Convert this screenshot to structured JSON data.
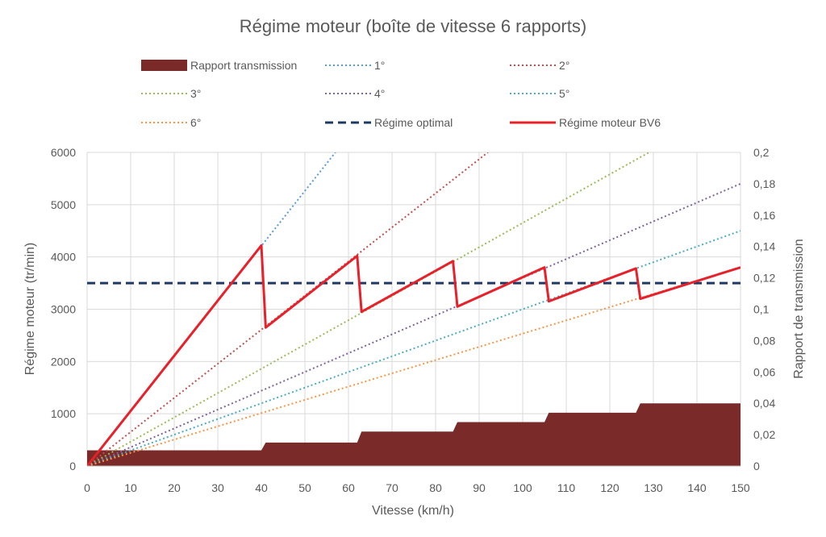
{
  "chart_data": {
    "type": "line",
    "title": "Régime moteur (boîte de vitesse 6 rapports)",
    "xlabel": "Vitesse (km/h)",
    "ylabel": "Régime moteur (tr/min)",
    "y2label": "Rapport de transmission",
    "xlim": [
      0,
      150
    ],
    "ylim": [
      0,
      6000
    ],
    "y2lim": [
      0,
      0.2
    ],
    "x_ticks": [
      "0",
      "10",
      "20",
      "30",
      "40",
      "50",
      "60",
      "70",
      "80",
      "90",
      "100",
      "110",
      "120",
      "130",
      "140",
      "150"
    ],
    "y_ticks": [
      "0",
      "1000",
      "2000",
      "3000",
      "4000",
      "5000",
      "6000"
    ],
    "y2_ticks": [
      "0",
      "0,02",
      "0,04",
      "0,06",
      "0,08",
      "0,1",
      "0,12",
      "0,14",
      "0,16",
      "0,18",
      "0,2"
    ],
    "grid": true,
    "legend_position": "top",
    "legend": [
      {
        "key": "ratio",
        "label": "Rapport transmission"
      },
      {
        "key": "g1",
        "label": "1°"
      },
      {
        "key": "g2",
        "label": "2°"
      },
      {
        "key": "g3",
        "label": "3°"
      },
      {
        "key": "g4",
        "label": "4°"
      },
      {
        "key": "g5",
        "label": "5°"
      },
      {
        "key": "g6",
        "label": "6°"
      },
      {
        "key": "optimal",
        "label": "Régime optimal"
      },
      {
        "key": "bv6",
        "label": "Régime moteur BV6"
      }
    ],
    "series": [
      {
        "key": "ratio",
        "name": "Rapport transmission",
        "type": "area",
        "axis": "y2",
        "color": "#7b2a2a",
        "points": [
          [
            0,
            0.01
          ],
          [
            40,
            0.01
          ],
          [
            41,
            0.015
          ],
          [
            62,
            0.015
          ],
          [
            63,
            0.022
          ],
          [
            84,
            0.022
          ],
          [
            85,
            0.028
          ],
          [
            105,
            0.028
          ],
          [
            106,
            0.034
          ],
          [
            126,
            0.034
          ],
          [
            127,
            0.04
          ],
          [
            150,
            0.04
          ]
        ]
      },
      {
        "key": "g1",
        "name": "1°",
        "type": "line",
        "style": "dotted",
        "color": "#5b9bd5",
        "points": [
          [
            0,
            0
          ],
          [
            57,
            6000
          ]
        ]
      },
      {
        "key": "g2",
        "name": "2°",
        "type": "line",
        "style": "dotted",
        "color": "#c0504d",
        "points": [
          [
            0,
            0
          ],
          [
            92,
            6000
          ]
        ]
      },
      {
        "key": "g3",
        "name": "3°",
        "type": "line",
        "style": "dotted",
        "color": "#9bbb59",
        "points": [
          [
            0,
            0
          ],
          [
            129,
            6000
          ]
        ]
      },
      {
        "key": "g4",
        "name": "4°",
        "type": "line",
        "style": "dotted",
        "color": "#8064a2",
        "points": [
          [
            0,
            0
          ],
          [
            150,
            5400
          ]
        ]
      },
      {
        "key": "g5",
        "name": "5°",
        "type": "line",
        "style": "dotted",
        "color": "#4bacc6",
        "points": [
          [
            0,
            0
          ],
          [
            150,
            4500
          ]
        ]
      },
      {
        "key": "g6",
        "name": "6°",
        "type": "line",
        "style": "dotted",
        "color": "#f79646",
        "points": [
          [
            0,
            0
          ],
          [
            150,
            3800
          ]
        ]
      },
      {
        "key": "optimal",
        "name": "Régime optimal",
        "type": "line",
        "style": "dashed",
        "color": "#1f3864",
        "points": [
          [
            0,
            3500
          ],
          [
            150,
            3500
          ]
        ]
      },
      {
        "key": "bv6",
        "name": "Régime moteur BV6",
        "type": "line",
        "style": "solid",
        "color": "#e8202a",
        "points": [
          [
            0,
            0
          ],
          [
            40,
            4220
          ],
          [
            41,
            2650
          ],
          [
            62,
            4020
          ],
          [
            63,
            2950
          ],
          [
            84,
            3920
          ],
          [
            85,
            3050
          ],
          [
            105,
            3800
          ],
          [
            106,
            3150
          ],
          [
            126,
            3780
          ],
          [
            127,
            3200
          ],
          [
            150,
            3800
          ]
        ]
      }
    ]
  },
  "colors": {
    "ratio": "#7b2a2a",
    "g1": "#5b9bd5",
    "g2": "#c0504d",
    "g3": "#9bbb59",
    "g4": "#8064a2",
    "g5": "#4bacc6",
    "g6": "#f79646",
    "optimal": "#1f3864",
    "bv6": "#e8202a"
  }
}
